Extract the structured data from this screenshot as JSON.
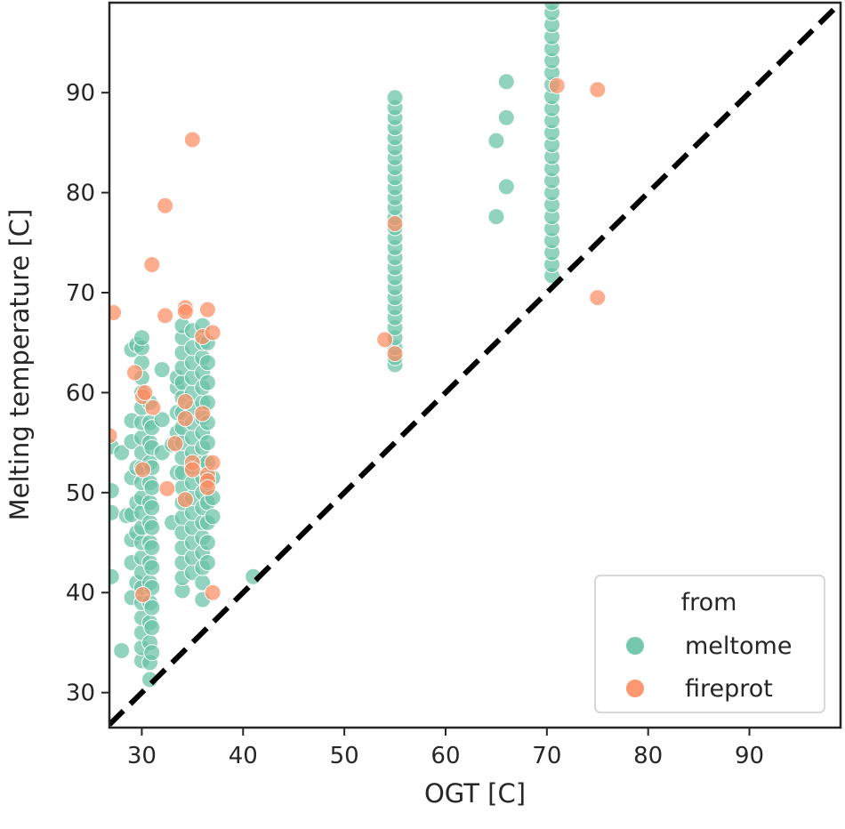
{
  "chart_data": {
    "type": "scatter",
    "xlabel": "OGT [C]",
    "ylabel": "Melting temperature [C]",
    "xlim": [
      26.8,
      99
    ],
    "ylim": [
      26.5,
      99
    ],
    "xticks": [
      30,
      40,
      50,
      60,
      70,
      80,
      90
    ],
    "yticks": [
      30,
      40,
      50,
      60,
      70,
      80,
      90
    ],
    "reference_line": "y = x (dashed)",
    "legend": {
      "title": "from",
      "location": "bottom-right",
      "entries": [
        {
          "label": "meltome",
          "color": "#66c2a5"
        },
        {
          "label": "fireprot",
          "color": "#fc8d62"
        }
      ]
    },
    "series": [
      {
        "name": "meltome",
        "color": "#66c2a5",
        "points": [
          [
            27,
            41.6
          ],
          [
            27,
            48
          ],
          [
            27,
            50.2
          ],
          [
            27,
            54.6
          ],
          [
            28,
            34.2
          ],
          [
            28,
            54
          ],
          [
            28.5,
            47.7
          ],
          [
            29,
            39.5
          ],
          [
            29,
            43
          ],
          [
            29,
            45.3
          ],
          [
            29,
            47.8
          ],
          [
            29,
            51.5
          ],
          [
            29,
            55.1
          ],
          [
            29,
            57.2
          ],
          [
            29,
            64.3
          ],
          [
            29.5,
            64.8
          ],
          [
            29.5,
            52.5
          ],
          [
            29.5,
            49
          ],
          [
            29.5,
            46
          ],
          [
            29.5,
            41
          ],
          [
            30,
            33.2
          ],
          [
            30,
            34.5
          ],
          [
            30,
            36
          ],
          [
            30,
            37.5
          ],
          [
            30,
            39
          ],
          [
            30,
            40.5
          ],
          [
            30,
            42
          ],
          [
            30,
            43.5
          ],
          [
            30,
            45
          ],
          [
            30,
            46.5
          ],
          [
            30,
            48
          ],
          [
            30,
            49.5
          ],
          [
            30,
            51
          ],
          [
            30,
            52.5
          ],
          [
            30,
            54
          ],
          [
            30,
            55.5
          ],
          [
            30,
            57
          ],
          [
            30,
            58.5
          ],
          [
            30,
            60
          ],
          [
            30,
            61.5
          ],
          [
            30,
            63
          ],
          [
            30,
            64.5
          ],
          [
            30,
            65.5
          ],
          [
            30.8,
            31.3
          ],
          [
            30.8,
            33
          ],
          [
            30.8,
            35
          ],
          [
            30.8,
            37
          ],
          [
            30.8,
            39
          ],
          [
            30.8,
            41
          ],
          [
            30.8,
            43
          ],
          [
            30.8,
            45
          ],
          [
            30.8,
            47
          ],
          [
            30.8,
            49
          ],
          [
            30.8,
            51
          ],
          [
            30.8,
            53
          ],
          [
            30.8,
            55
          ],
          [
            30.8,
            57
          ],
          [
            30.8,
            59
          ],
          [
            31,
            34
          ],
          [
            31,
            36.5
          ],
          [
            31,
            38.5
          ],
          [
            31,
            40.5
          ],
          [
            31,
            42.5
          ],
          [
            31,
            44.5
          ],
          [
            31,
            46.5
          ],
          [
            31,
            48.5
          ],
          [
            31,
            50.5
          ],
          [
            31,
            52.5
          ],
          [
            31,
            54.5
          ],
          [
            31,
            56.5
          ],
          [
            32,
            54
          ],
          [
            32,
            57.3
          ],
          [
            32,
            62.3
          ],
          [
            33,
            47
          ],
          [
            33,
            54.8
          ],
          [
            33.5,
            60.5
          ],
          [
            33.5,
            61.5
          ],
          [
            33.5,
            52
          ],
          [
            33.5,
            56
          ],
          [
            33.5,
            58
          ],
          [
            34,
            40.2
          ],
          [
            34,
            41.5
          ],
          [
            34,
            43
          ],
          [
            34,
            44.5
          ],
          [
            34,
            46
          ],
          [
            34,
            47.5
          ],
          [
            34,
            49
          ],
          [
            34,
            50.5
          ],
          [
            34,
            52
          ],
          [
            34,
            53.5
          ],
          [
            34,
            55
          ],
          [
            34,
            56.5
          ],
          [
            34,
            58
          ],
          [
            34,
            59.5
          ],
          [
            34,
            61
          ],
          [
            34,
            62.5
          ],
          [
            34,
            64
          ],
          [
            34,
            65.5
          ],
          [
            34,
            66.7
          ],
          [
            35,
            42
          ],
          [
            35,
            43.5
          ],
          [
            35,
            45
          ],
          [
            35,
            46.5
          ],
          [
            35,
            48
          ],
          [
            35,
            49.5
          ],
          [
            35,
            51
          ],
          [
            35,
            52.5
          ],
          [
            35,
            54
          ],
          [
            35,
            55.5
          ],
          [
            35,
            57
          ],
          [
            35,
            58.5
          ],
          [
            35,
            60
          ],
          [
            35,
            61.5
          ],
          [
            35,
            63
          ],
          [
            35,
            64.5
          ],
          [
            35,
            66.2
          ],
          [
            36,
            39.3
          ],
          [
            36,
            41
          ],
          [
            36,
            42.5
          ],
          [
            36,
            44
          ],
          [
            36,
            45.5
          ],
          [
            36,
            47
          ],
          [
            36,
            48.5
          ],
          [
            36,
            50
          ],
          [
            36,
            51.5
          ],
          [
            36,
            53
          ],
          [
            36,
            54.5
          ],
          [
            36,
            56
          ],
          [
            36,
            57.5
          ],
          [
            36,
            59
          ],
          [
            36,
            60.5
          ],
          [
            36,
            62
          ],
          [
            36,
            63.5
          ],
          [
            36,
            65
          ],
          [
            36,
            66.7
          ],
          [
            36.5,
            43
          ],
          [
            36.5,
            45
          ],
          [
            36.5,
            47
          ],
          [
            36.5,
            49
          ],
          [
            36.5,
            51
          ],
          [
            36.5,
            53
          ],
          [
            36.5,
            55
          ],
          [
            36.5,
            57
          ],
          [
            36.5,
            59
          ],
          [
            36.5,
            61
          ],
          [
            36.5,
            63
          ],
          [
            36.5,
            65
          ],
          [
            37,
            47.6
          ],
          [
            37,
            49.5
          ],
          [
            37,
            51.5
          ],
          [
            41,
            41.6
          ],
          [
            55,
            62.8
          ],
          [
            55,
            63.5
          ],
          [
            55,
            64.5
          ],
          [
            55,
            65.5
          ],
          [
            55,
            66.5
          ],
          [
            55,
            67.5
          ],
          [
            55,
            68.5
          ],
          [
            55,
            69.5
          ],
          [
            55,
            70.5
          ],
          [
            55,
            71.5
          ],
          [
            55,
            72.5
          ],
          [
            55,
            73.5
          ],
          [
            55,
            74.5
          ],
          [
            55,
            75.5
          ],
          [
            55,
            76.5
          ],
          [
            55,
            77.5
          ],
          [
            55,
            78.5
          ],
          [
            55,
            79.5
          ],
          [
            55,
            80.5
          ],
          [
            55,
            81.5
          ],
          [
            55,
            82.5
          ],
          [
            55,
            83.5
          ],
          [
            55,
            84.5
          ],
          [
            55,
            85.5
          ],
          [
            55,
            86.5
          ],
          [
            55,
            87.5
          ],
          [
            55,
            88.5
          ],
          [
            55,
            89.5
          ],
          [
            65,
            77.6
          ],
          [
            65,
            85.2
          ],
          [
            66,
            80.6
          ],
          [
            66,
            87.5
          ],
          [
            66,
            91.1
          ],
          [
            70.5,
            71.7
          ],
          [
            70.5,
            72.8
          ],
          [
            70.5,
            74
          ],
          [
            70.5,
            75.2
          ],
          [
            70.5,
            76.4
          ],
          [
            70.5,
            77.6
          ],
          [
            70.5,
            78.8
          ],
          [
            70.5,
            80
          ],
          [
            70.5,
            81.2
          ],
          [
            70.5,
            82.4
          ],
          [
            70.5,
            83.6
          ],
          [
            70.5,
            84.8
          ],
          [
            70.5,
            86
          ],
          [
            70.5,
            87.2
          ],
          [
            70.5,
            88.4
          ],
          [
            70.5,
            89.6
          ],
          [
            70.5,
            90.8
          ],
          [
            70.5,
            92
          ],
          [
            70.5,
            93.2
          ],
          [
            70.5,
            94.4
          ],
          [
            70.5,
            95.6
          ],
          [
            70.5,
            96.8
          ],
          [
            70.5,
            98
          ],
          [
            70.5,
            99
          ]
        ]
      },
      {
        "name": "fireprot",
        "color": "#fc8d62",
        "points": [
          [
            26.8,
            55.7
          ],
          [
            27.2,
            68
          ],
          [
            29.3,
            62
          ],
          [
            30.1,
            39.8
          ],
          [
            30.1,
            52.3
          ],
          [
            30.1,
            59.6
          ],
          [
            30.3,
            60
          ],
          [
            31,
            72.8
          ],
          [
            31.1,
            58.5
          ],
          [
            32.3,
            78.7
          ],
          [
            32.3,
            67.7
          ],
          [
            32.5,
            50.4
          ],
          [
            33.3,
            54.9
          ],
          [
            34.3,
            68.5
          ],
          [
            34.3,
            68.1
          ],
          [
            34.3,
            59.1
          ],
          [
            34.3,
            57.4
          ],
          [
            34.3,
            49.3
          ],
          [
            35,
            85.3
          ],
          [
            35,
            53
          ],
          [
            35,
            52.3
          ],
          [
            36,
            65.6
          ],
          [
            36,
            57.9
          ],
          [
            36.5,
            68.3
          ],
          [
            36.5,
            51.8
          ],
          [
            36.5,
            51.2
          ],
          [
            36.5,
            50.5
          ],
          [
            37,
            66
          ],
          [
            37,
            53
          ],
          [
            37,
            40
          ],
          [
            54,
            65.3
          ],
          [
            55,
            76.9
          ],
          [
            55,
            63.9
          ],
          [
            71,
            90.7
          ],
          [
            75,
            90.3
          ],
          [
            75,
            69.5
          ]
        ]
      }
    ]
  }
}
